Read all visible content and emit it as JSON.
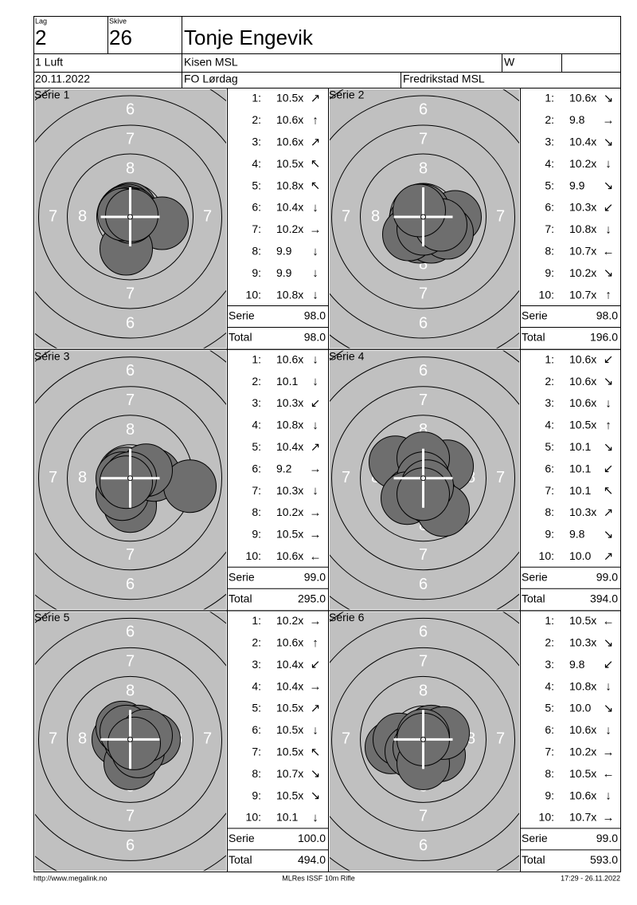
{
  "header": {
    "lag_label": "Lag",
    "lag": "2",
    "skive_label": "Skive",
    "skive": "26",
    "name": "Tonje Engevik",
    "class": "1 Luft",
    "club": "Kisen MSL",
    "w": "W",
    "date": "20.11.2022",
    "event": "FO Lørdag",
    "venue": "Fredrikstad MSL"
  },
  "ring_labels": [
    "6",
    "7",
    "8"
  ],
  "series": [
    {
      "title": "Série 1",
      "shots": [
        [
          "1:",
          "10.5x",
          "↗"
        ],
        [
          "2:",
          "10.6x",
          "↑"
        ],
        [
          "3:",
          "10.6x",
          "↗"
        ],
        [
          "4:",
          "10.5x",
          "↖"
        ],
        [
          "5:",
          "10.8x",
          "↖"
        ],
        [
          "6:",
          "10.4x",
          "↓"
        ],
        [
          "7:",
          "10.2x",
          "→"
        ],
        [
          "8:",
          "9.9",
          "↓"
        ],
        [
          "9:",
          "9.9",
          "↓"
        ],
        [
          "10:",
          "10.8x",
          "↓"
        ]
      ],
      "serie_label": "Serie",
      "serie": "98.0",
      "total_label": "Total",
      "total": "98.0"
    },
    {
      "title": "Série 2",
      "shots": [
        [
          "1:",
          "10.6x",
          "↘"
        ],
        [
          "2:",
          "9.8",
          "→"
        ],
        [
          "3:",
          "10.4x",
          "↘"
        ],
        [
          "4:",
          "10.2x",
          "↓"
        ],
        [
          "5:",
          "9.9",
          "↘"
        ],
        [
          "6:",
          "10.3x",
          "↙"
        ],
        [
          "7:",
          "10.8x",
          "↓"
        ],
        [
          "8:",
          "10.7x",
          "←"
        ],
        [
          "9:",
          "10.2x",
          "↘"
        ],
        [
          "10:",
          "10.7x",
          "↑"
        ]
      ],
      "serie_label": "Serie",
      "serie": "98.0",
      "total_label": "Total",
      "total": "196.0"
    },
    {
      "title": "Série 3",
      "shots": [
        [
          "1:",
          "10.6x",
          "↓"
        ],
        [
          "2:",
          "10.1",
          "↓"
        ],
        [
          "3:",
          "10.3x",
          "↙"
        ],
        [
          "4:",
          "10.8x",
          "↓"
        ],
        [
          "5:",
          "10.4x",
          "↗"
        ],
        [
          "6:",
          "9.2",
          "→"
        ],
        [
          "7:",
          "10.3x",
          "↓"
        ],
        [
          "8:",
          "10.2x",
          "→"
        ],
        [
          "9:",
          "10.5x",
          "→"
        ],
        [
          "10:",
          "10.6x",
          "←"
        ]
      ],
      "serie_label": "Serie",
      "serie": "99.0",
      "total_label": "Total",
      "total": "295.0"
    },
    {
      "title": "Série 4",
      "shots": [
        [
          "1:",
          "10.6x",
          "↙"
        ],
        [
          "2:",
          "10.6x",
          "↘"
        ],
        [
          "3:",
          "10.6x",
          "↓"
        ],
        [
          "4:",
          "10.5x",
          "↑"
        ],
        [
          "5:",
          "10.1",
          "↘"
        ],
        [
          "6:",
          "10.1",
          "↙"
        ],
        [
          "7:",
          "10.1",
          "↖"
        ],
        [
          "8:",
          "10.3x",
          "↗"
        ],
        [
          "9:",
          "9.8",
          "↘"
        ],
        [
          "10:",
          "10.0",
          "↗"
        ]
      ],
      "serie_label": "Serie",
      "serie": "99.0",
      "total_label": "Total",
      "total": "394.0"
    },
    {
      "title": "Série 5",
      "shots": [
        [
          "1:",
          "10.2x",
          "→"
        ],
        [
          "2:",
          "10.6x",
          "↑"
        ],
        [
          "3:",
          "10.4x",
          "↙"
        ],
        [
          "4:",
          "10.4x",
          "→"
        ],
        [
          "5:",
          "10.5x",
          "↗"
        ],
        [
          "6:",
          "10.5x",
          "↓"
        ],
        [
          "7:",
          "10.5x",
          "↖"
        ],
        [
          "8:",
          "10.7x",
          "↘"
        ],
        [
          "9:",
          "10.5x",
          "↘"
        ],
        [
          "10:",
          "10.1",
          "↓"
        ]
      ],
      "serie_label": "Serie",
      "serie": "100.0",
      "total_label": "Total",
      "total": "494.0"
    },
    {
      "title": "Série 6",
      "shots": [
        [
          "1:",
          "10.5x",
          "←"
        ],
        [
          "2:",
          "10.3x",
          "↘"
        ],
        [
          "3:",
          "9.8",
          "↙"
        ],
        [
          "4:",
          "10.8x",
          "↓"
        ],
        [
          "5:",
          "10.0",
          "↘"
        ],
        [
          "6:",
          "10.6x",
          "↓"
        ],
        [
          "7:",
          "10.2x",
          "→"
        ],
        [
          "8:",
          "10.5x",
          "←"
        ],
        [
          "9:",
          "10.6x",
          "↓"
        ],
        [
          "10:",
          "10.7x",
          "→"
        ]
      ],
      "serie_label": "Serie",
      "serie": "99.0",
      "total_label": "Total",
      "total": "593.0"
    }
  ],
  "footer": {
    "left": "http://www.megalink.no",
    "center": "MLRes ISSF 10m Rifle",
    "right": "17:29 - 26.11.2022"
  }
}
